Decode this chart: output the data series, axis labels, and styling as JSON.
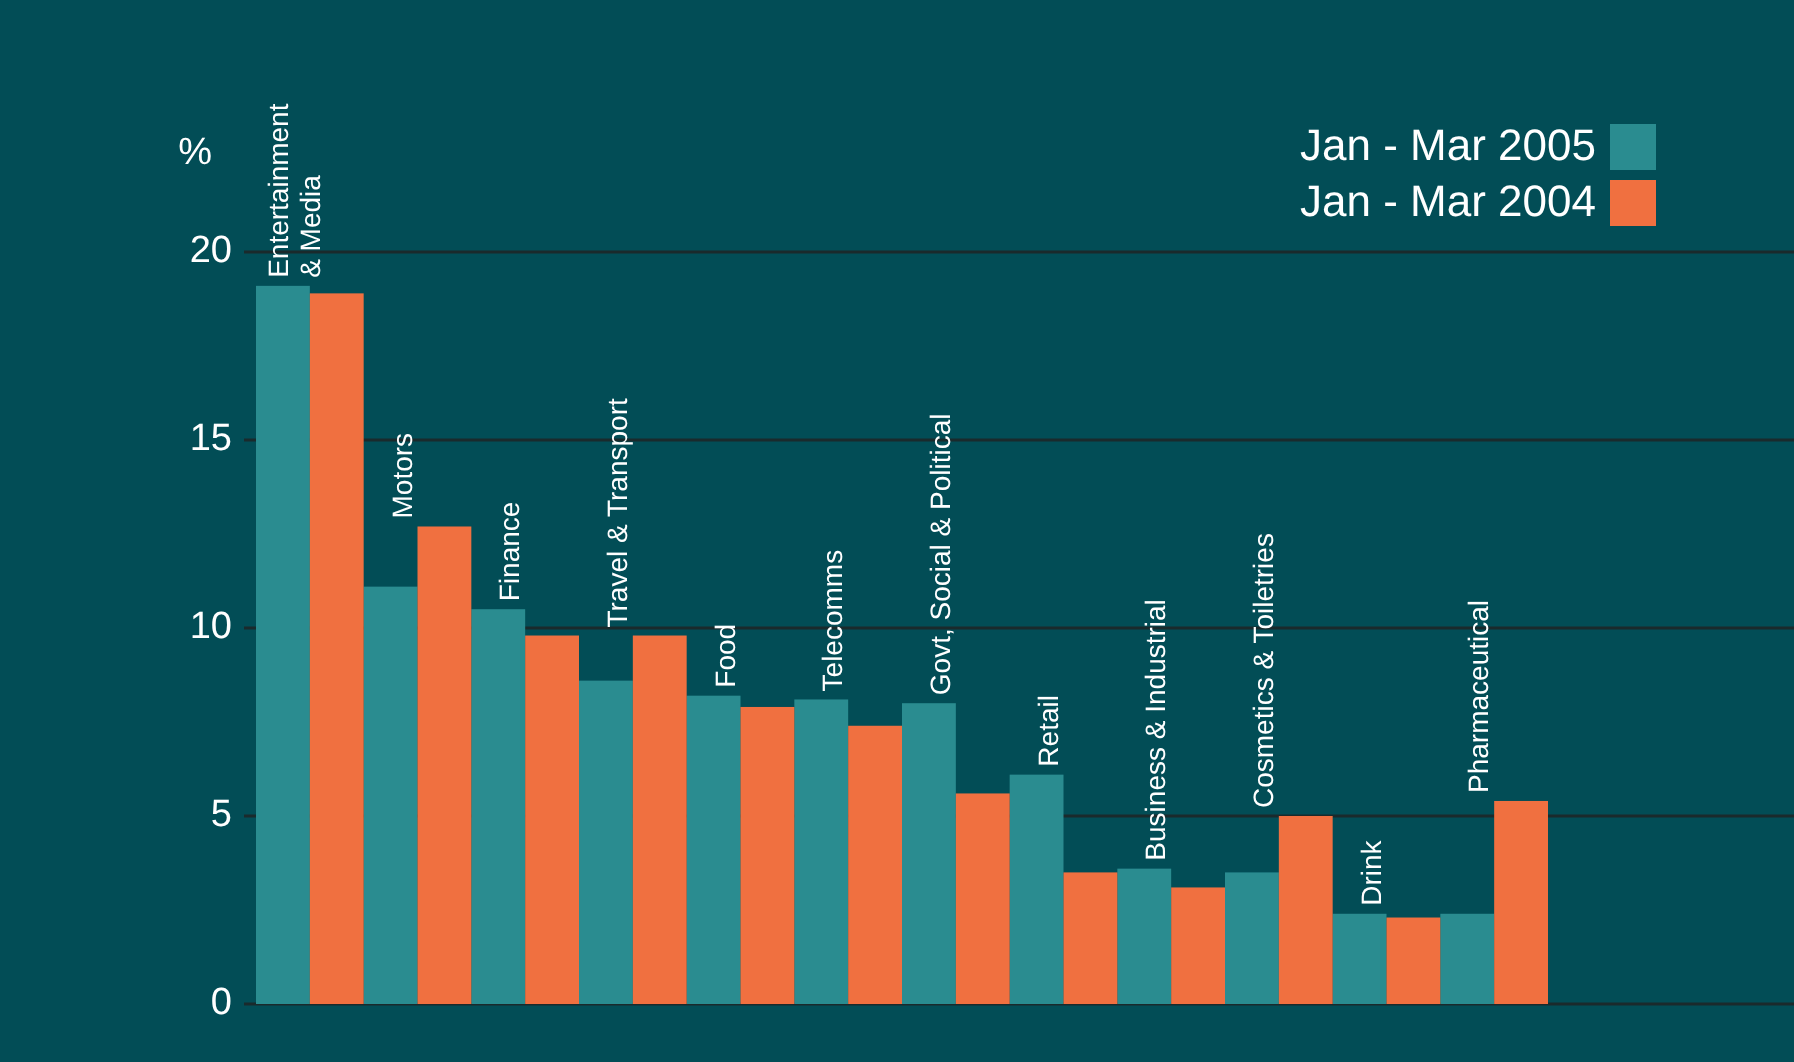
{
  "chart_data": {
    "type": "bar",
    "ylabel": "%",
    "categories": [
      "Entertainment\n& Media",
      "Motors",
      "Finance",
      "Travel & Transport",
      "Food",
      "Telecomms",
      "Govt, Social & Political",
      "Retail",
      "Business & Industrial",
      "Cosmetics & Toiletries",
      "Drink",
      "Pharmaceutical"
    ],
    "series": [
      {
        "name": "Jan - Mar 2005",
        "color": "#2a8c90",
        "values": [
          19.1,
          11.1,
          10.5,
          8.6,
          8.2,
          8.1,
          8.0,
          6.1,
          3.6,
          3.5,
          2.4,
          2.4
        ]
      },
      {
        "name": "Jan - Mar 2004",
        "color": "#f07040",
        "values": [
          18.9,
          12.7,
          9.8,
          9.8,
          7.9,
          7.4,
          5.6,
          3.5,
          3.1,
          5.0,
          2.3,
          5.4
        ]
      }
    ],
    "ylim": [
      0,
      20
    ],
    "yticks": [
      0,
      5,
      10,
      15,
      20
    ],
    "grid": "y",
    "legend": "top right"
  }
}
